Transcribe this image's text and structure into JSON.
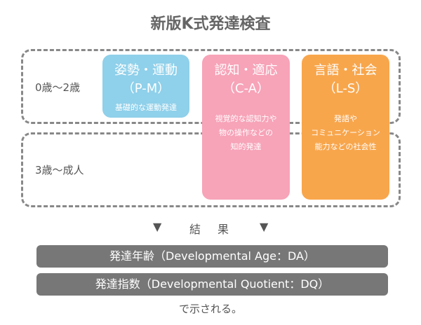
{
  "title": "新版K式発達検査",
  "ages": [
    "0歳〜2歳",
    "3歳〜成人"
  ],
  "areas": [
    {
      "name": "姿勢・運動",
      "code": "（P-M）",
      "desc": [
        "基礎的な運動発達"
      ],
      "color": "#8fd0ea"
    },
    {
      "name": "認知・適応",
      "code": "（C-A）",
      "desc": [
        "視覚的な認知力や",
        "物の操作などの",
        "知的発達"
      ],
      "color": "#f7a3b8"
    },
    {
      "name": "言語・社会",
      "code": "（L-S）",
      "desc": [
        "発語や",
        "コミュニケーション",
        "能力などの社会性"
      ],
      "color": "#f8a64c"
    }
  ],
  "result": {
    "arrow": "▼",
    "label": "結　果"
  },
  "outputs": [
    "発達年齢（Developmental Age：DA）",
    "発達指数（Developmental Quotient：DQ）"
  ],
  "footer": "で示される。"
}
